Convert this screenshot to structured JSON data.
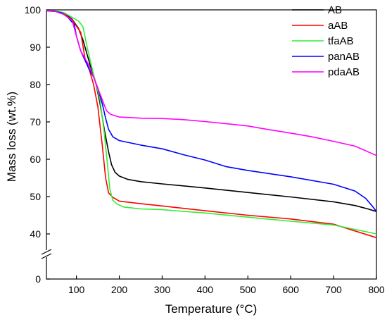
{
  "chart_data": {
    "type": "line",
    "xlabel": "Temperature (°C)",
    "ylabel": "Mass loss (wt.%)",
    "xlim": [
      30,
      800
    ],
    "ylim": [
      35,
      100
    ],
    "x_ticks": [
      100,
      200,
      300,
      400,
      500,
      600,
      700,
      800
    ],
    "y_ticks": [
      40,
      50,
      60,
      70,
      80,
      90,
      100
    ],
    "y_zero_label": "0",
    "y_axis_break": true,
    "legend_position": "top-right",
    "grid": false,
    "series": [
      {
        "name": "AB",
        "color": "#000000",
        "points": [
          [
            30,
            99.8
          ],
          [
            50,
            99.6
          ],
          [
            70,
            99.2
          ],
          [
            90,
            97.5
          ],
          [
            105,
            95
          ],
          [
            115,
            92
          ],
          [
            125,
            88
          ],
          [
            135,
            84
          ],
          [
            145,
            80.5
          ],
          [
            155,
            75
          ],
          [
            165,
            68
          ],
          [
            175,
            62
          ],
          [
            182,
            58.5
          ],
          [
            190,
            56.5
          ],
          [
            200,
            55.5
          ],
          [
            220,
            54.6
          ],
          [
            250,
            54
          ],
          [
            300,
            53.4
          ],
          [
            400,
            52.3
          ],
          [
            500,
            51.1
          ],
          [
            600,
            49.9
          ],
          [
            700,
            48.6
          ],
          [
            750,
            47.6
          ],
          [
            780,
            46.7
          ],
          [
            800,
            46
          ]
        ]
      },
      {
        "name": "aAB",
        "color": "#ff0000",
        "points": [
          [
            30,
            99.8
          ],
          [
            50,
            99.6
          ],
          [
            70,
            99
          ],
          [
            90,
            97.3
          ],
          [
            110,
            94
          ],
          [
            120,
            87
          ],
          [
            130,
            84
          ],
          [
            140,
            80
          ],
          [
            150,
            74
          ],
          [
            160,
            64
          ],
          [
            168,
            55
          ],
          [
            175,
            51
          ],
          [
            185,
            49.8
          ],
          [
            200,
            48.8
          ],
          [
            250,
            48.1
          ],
          [
            300,
            47.5
          ],
          [
            400,
            46.2
          ],
          [
            500,
            45
          ],
          [
            600,
            44
          ],
          [
            700,
            42.6
          ],
          [
            750,
            40.8
          ],
          [
            800,
            39
          ]
        ]
      },
      {
        "name": "tfaAB",
        "color": "#33ee33",
        "points": [
          [
            30,
            99.8
          ],
          [
            50,
            99.7
          ],
          [
            70,
            99.3
          ],
          [
            90,
            98
          ],
          [
            105,
            97
          ],
          [
            115,
            95.5
          ],
          [
            125,
            90
          ],
          [
            135,
            85
          ],
          [
            145,
            80.5
          ],
          [
            155,
            76
          ],
          [
            165,
            67
          ],
          [
            172,
            59
          ],
          [
            178,
            52
          ],
          [
            185,
            49
          ],
          [
            195,
            48
          ],
          [
            210,
            47.2
          ],
          [
            250,
            46.7
          ],
          [
            300,
            46.5
          ],
          [
            400,
            45.6
          ],
          [
            500,
            44.5
          ],
          [
            600,
            43.4
          ],
          [
            700,
            42.4
          ],
          [
            750,
            41.2
          ],
          [
            800,
            40
          ]
        ]
      },
      {
        "name": "panAB",
        "color": "#0000ff",
        "points": [
          [
            30,
            99.7
          ],
          [
            50,
            99.6
          ],
          [
            65,
            99.2
          ],
          [
            80,
            98
          ],
          [
            95,
            96
          ],
          [
            100,
            93
          ],
          [
            110,
            89
          ],
          [
            120,
            86.5
          ],
          [
            130,
            84
          ],
          [
            140,
            82
          ],
          [
            150,
            79
          ],
          [
            160,
            75
          ],
          [
            168,
            71
          ],
          [
            175,
            68
          ],
          [
            185,
            66
          ],
          [
            200,
            65
          ],
          [
            250,
            63.8
          ],
          [
            300,
            62.8
          ],
          [
            350,
            61.2
          ],
          [
            400,
            59.8
          ],
          [
            450,
            58
          ],
          [
            500,
            57
          ],
          [
            600,
            55.3
          ],
          [
            700,
            53.3
          ],
          [
            750,
            51.5
          ],
          [
            775,
            49.5
          ],
          [
            790,
            47.5
          ],
          [
            800,
            46
          ]
        ]
      },
      {
        "name": "pdaAB",
        "color": "#ff00ff",
        "points": [
          [
            30,
            99.7
          ],
          [
            50,
            99.6
          ],
          [
            70,
            98.8
          ],
          [
            90,
            97.2
          ],
          [
            100,
            93
          ],
          [
            110,
            89
          ],
          [
            120,
            87
          ],
          [
            130,
            85
          ],
          [
            140,
            82
          ],
          [
            150,
            79
          ],
          [
            160,
            76
          ],
          [
            170,
            73
          ],
          [
            180,
            72
          ],
          [
            200,
            71.3
          ],
          [
            250,
            71
          ],
          [
            300,
            70.9
          ],
          [
            350,
            70.6
          ],
          [
            400,
            70.1
          ],
          [
            450,
            69.5
          ],
          [
            500,
            68.9
          ],
          [
            550,
            67.9
          ],
          [
            600,
            67
          ],
          [
            650,
            66
          ],
          [
            700,
            64.8
          ],
          [
            750,
            63.5
          ],
          [
            800,
            61
          ]
        ]
      }
    ]
  }
}
